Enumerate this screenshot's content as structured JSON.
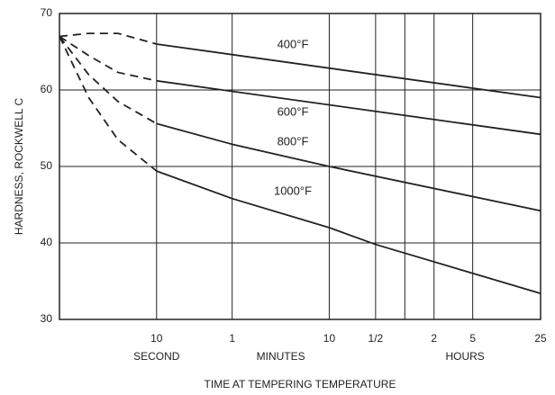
{
  "chart_data": {
    "type": "line",
    "xlabel": "TIME AT TEMPERING TEMPERATURE",
    "ylabel": "HARDNESS, ROCKWELL C",
    "xscale": "log",
    "xlim": [
      1,
      90000
    ],
    "ylim": [
      30,
      70
    ],
    "yticks": [
      30,
      40,
      50,
      60,
      70
    ],
    "xticks": [
      10,
      {
        "value": 60,
        "label": "1"
      },
      {
        "value": 600,
        "label": "10"
      },
      {
        "value": 1800,
        "label": "1/2"
      },
      {
        "value": 7200,
        "label": "2"
      },
      {
        "value": 18000,
        "label": "5"
      },
      {
        "value": 90000,
        "label": "25"
      }
    ],
    "x_extra_gridlines": [
      3600
    ],
    "x_unit_labels": [
      {
        "label": "SECOND",
        "value": 10
      },
      {
        "label": "MINUTES",
        "value": 190
      },
      {
        "label": "HOURS",
        "value": 15000
      }
    ],
    "grid": true,
    "color": "#222222",
    "series": [
      {
        "name": "400°F",
        "dash_end": 10,
        "x": [
          1,
          2,
          4,
          10,
          90000
        ],
        "values": [
          67,
          67.4,
          67.4,
          66,
          59
        ]
      },
      {
        "name": "600°F",
        "dash_end": 10,
        "x": [
          1,
          2,
          4,
          10,
          90000
        ],
        "values": [
          67,
          64.5,
          62.3,
          61.2,
          54.2
        ]
      },
      {
        "name": "800°F",
        "dash_end": 10,
        "x": [
          1,
          2,
          4,
          10,
          60,
          600,
          90000
        ],
        "values": [
          67,
          62,
          58.5,
          55.6,
          52.9,
          50,
          44.2
        ]
      },
      {
        "name": "1000°F",
        "dash_end": 10,
        "x": [
          1,
          2,
          4,
          10,
          60,
          600,
          1800,
          90000
        ],
        "values": [
          67,
          59,
          53.5,
          49.4,
          45.8,
          42,
          39.8,
          33.4
        ]
      }
    ]
  }
}
